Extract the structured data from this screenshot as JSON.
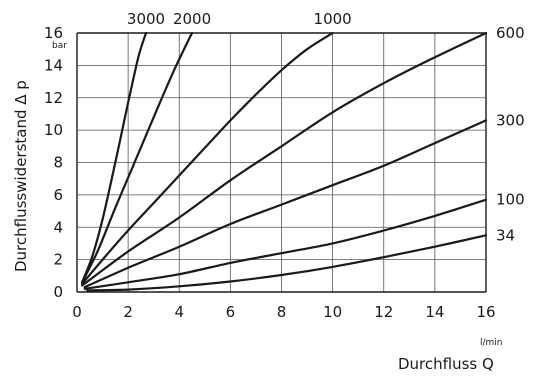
{
  "chart_data": {
    "type": "line",
    "title": "",
    "xlabel": "Durchfluss Q",
    "ylabel": "Durchflusswiderstand Δ p",
    "xunit": "l/min",
    "yunit": "bar",
    "xlim": [
      0,
      16
    ],
    "ylim": [
      0,
      16
    ],
    "xticks": [
      "0",
      "2",
      "4",
      "6",
      "8",
      "10",
      "12",
      "14",
      "16"
    ],
    "yticks": [
      "0",
      "2",
      "4",
      "6",
      "8",
      "10",
      "12",
      "14",
      "16"
    ],
    "grid": true,
    "line_color": "#1a1a1a",
    "grid_color": "#555555",
    "series": [
      {
        "name": "3000",
        "x": [
          0.2,
          0.6,
          1.0,
          1.5,
          2.0,
          2.4,
          2.7
        ],
        "y": [
          0.6,
          2.2,
          4.5,
          8.0,
          11.7,
          14.5,
          16.0
        ]
      },
      {
        "name": "2000",
        "x": [
          0.2,
          0.8,
          1.5,
          2.2,
          3.0,
          3.8,
          4.5
        ],
        "y": [
          0.6,
          2.5,
          5.2,
          7.8,
          10.8,
          13.7,
          16.0
        ]
      },
      {
        "name": "1000",
        "x": [
          0.2,
          1.0,
          2.0,
          3.0,
          4.0,
          5.0,
          6.0,
          7.0,
          8.0,
          9.0,
          10.0
        ],
        "y": [
          0.5,
          2.0,
          3.8,
          5.5,
          7.2,
          8.9,
          10.6,
          12.2,
          13.7,
          15.0,
          16.0
        ]
      },
      {
        "name": "600",
        "x": [
          0.2,
          2.0,
          4.0,
          6.0,
          8.0,
          10.0,
          12.0,
          14.0,
          16.0
        ],
        "y": [
          0.4,
          2.5,
          4.6,
          6.9,
          9.0,
          11.1,
          12.9,
          14.5,
          16.0
        ]
      },
      {
        "name": "300",
        "x": [
          0.3,
          2.0,
          4.0,
          6.0,
          8.0,
          10.0,
          12.0,
          14.0,
          16.0
        ],
        "y": [
          0.3,
          1.5,
          2.8,
          4.2,
          5.4,
          6.6,
          7.8,
          9.2,
          10.6
        ]
      },
      {
        "name": "100",
        "x": [
          0.3,
          2.0,
          4.0,
          6.0,
          8.0,
          10.0,
          12.0,
          14.0,
          16.0
        ],
        "y": [
          0.2,
          0.6,
          1.1,
          1.8,
          2.4,
          3.0,
          3.8,
          4.7,
          5.7
        ]
      },
      {
        "name": "34",
        "x": [
          0.4,
          2.0,
          4.0,
          6.0,
          8.0,
          10.0,
          12.0,
          14.0,
          16.0
        ],
        "y": [
          0.1,
          0.15,
          0.35,
          0.65,
          1.05,
          1.55,
          2.15,
          2.8,
          3.5
        ]
      }
    ]
  }
}
